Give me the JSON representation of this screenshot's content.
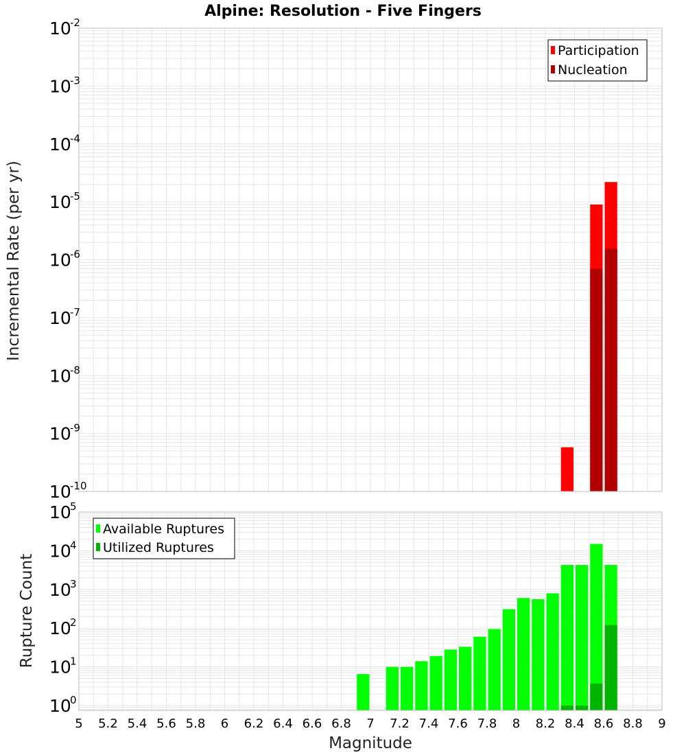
{
  "title": "Alpine: Resolution - Five Fingers",
  "xlabel": "Magnitude",
  "x_ticks": [
    "5",
    "5.2",
    "5.4",
    "5.6",
    "5.8",
    "6",
    "6.2",
    "6.4",
    "6.6",
    "6.8",
    "7",
    "7.2",
    "7.4",
    "7.6",
    "7.8",
    "8",
    "8.2",
    "8.4",
    "8.6",
    "8.8",
    "9"
  ],
  "colors": {
    "participation": "#ff0000",
    "nucleation": "#b00000",
    "available": "#00ff00",
    "utilized": "#00b400",
    "grid": "#e6e6e6",
    "frame": "#bdbdbd"
  },
  "chart_data": [
    {
      "type": "bar",
      "ylabel": "Incremental Rate (per yr)",
      "y_scale": "log",
      "xlim": [
        5,
        9
      ],
      "ylim": [
        1e-10,
        0.01
      ],
      "y_ticks": [
        {
          "base": "10",
          "exp": "-2"
        },
        {
          "base": "10",
          "exp": "-3"
        },
        {
          "base": "10",
          "exp": "-4"
        },
        {
          "base": "10",
          "exp": "-5"
        },
        {
          "base": "10",
          "exp": "-6"
        },
        {
          "base": "10",
          "exp": "-7"
        },
        {
          "base": "10",
          "exp": "-8"
        },
        {
          "base": "10",
          "exp": "-9"
        },
        {
          "base": "10",
          "exp": "-10"
        }
      ],
      "legend_position": "top-right",
      "series": [
        {
          "name": "Participation",
          "x": [
            8.35,
            8.55,
            8.65
          ],
          "values": [
            5.8e-10,
            9e-06,
            2.2e-05
          ]
        },
        {
          "name": "Nucleation",
          "x": [
            8.55,
            8.65
          ],
          "values": [
            7e-07,
            1.55e-06
          ]
        }
      ]
    },
    {
      "type": "bar",
      "ylabel": "Rupture Count",
      "y_scale": "log",
      "xlim": [
        5,
        9
      ],
      "ylim": [
        0.75,
        100000
      ],
      "y_ticks": [
        {
          "base": "10",
          "exp": "5"
        },
        {
          "base": "10",
          "exp": "4"
        },
        {
          "base": "10",
          "exp": "3"
        },
        {
          "base": "10",
          "exp": "2"
        },
        {
          "base": "10",
          "exp": "1"
        },
        {
          "base": "10",
          "exp": "0"
        }
      ],
      "legend_position": "top-left",
      "series": [
        {
          "name": "Available Ruptures",
          "x": [
            6.95,
            7.15,
            7.25,
            7.35,
            7.45,
            7.55,
            7.65,
            7.75,
            7.85,
            7.95,
            8.05,
            8.15,
            8.25,
            8.35,
            8.45,
            8.55,
            8.65
          ],
          "values": [
            6.5,
            10,
            10,
            14,
            19,
            28,
            33,
            60,
            95,
            310,
            600,
            560,
            790,
            4300,
            4300,
            15000,
            4300
          ]
        },
        {
          "name": "Utilized Ruptures",
          "x": [
            8.35,
            8.45,
            8.55,
            8.65
          ],
          "values": [
            1,
            1,
            3.7,
            120
          ]
        }
      ]
    }
  ]
}
